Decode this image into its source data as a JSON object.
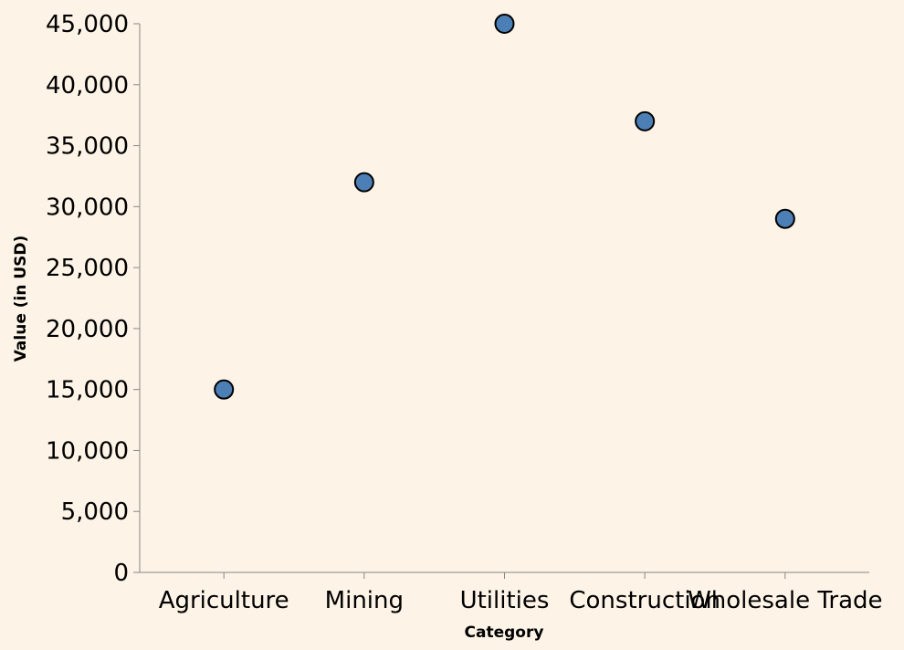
{
  "chart_data": {
    "type": "scatter",
    "categories": [
      "Agriculture",
      "Mining",
      "Utilities",
      "Construction",
      "Wholesale Trade"
    ],
    "values": [
      15000,
      32000,
      45000,
      37000,
      29000
    ],
    "xlabel": "Category",
    "ylabel": "Value (in USD)",
    "ylim": [
      0,
      45000
    ],
    "yticks": [
      "0",
      "5,000",
      "10,000",
      "15,000",
      "20,000",
      "25,000",
      "30,000",
      "35,000",
      "40,000",
      "45,000"
    ],
    "grid": false,
    "legend": "none",
    "point_color": "#4c7fb5",
    "background_color": "#fdf3e6"
  }
}
